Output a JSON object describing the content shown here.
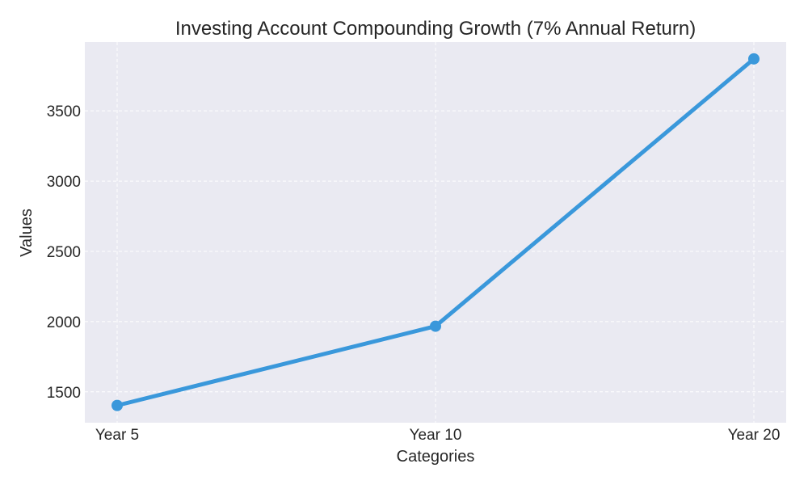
{
  "chart_data": {
    "type": "line",
    "title": "Investing Account Compounding Growth (7% Annual Return)",
    "xlabel": "Categories",
    "ylabel": "Values",
    "categories": [
      "Year 5",
      "Year 10",
      "Year 20"
    ],
    "series": [
      {
        "values": [
          1403,
          1967,
          3870
        ],
        "color": "#3a98db"
      }
    ],
    "yticks": [
      1500,
      2000,
      2500,
      3000,
      3500
    ],
    "ylim": [
      1280,
      3990
    ],
    "grid": true,
    "background_color": "#eaeaf2",
    "grid_color": "#ffffff"
  }
}
